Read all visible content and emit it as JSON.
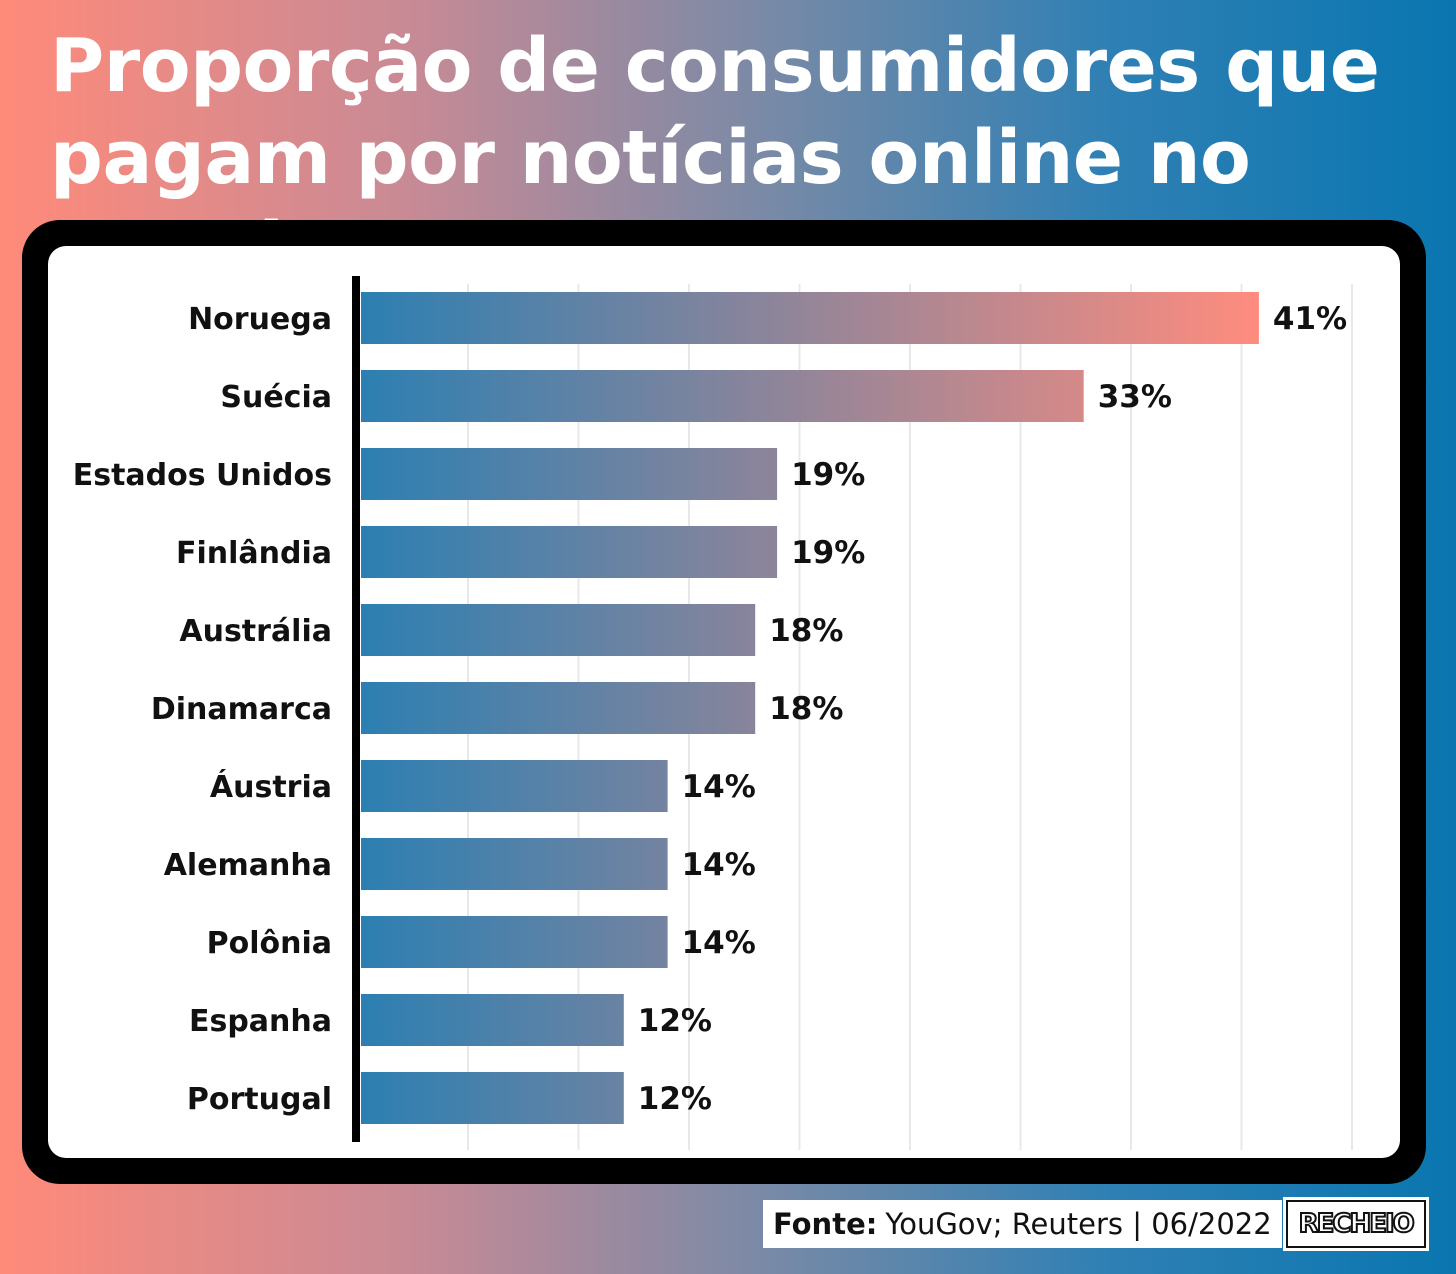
{
  "title": "Proporção de consumidores que pagam por notícias online no mundo",
  "footer": {
    "source_label": "Fonte:",
    "source_text": "YouGov; Reuters | 06/2022",
    "brand": "RECHEIO"
  },
  "colors": {
    "bar_start": "#2c7fb2",
    "bar_end": "#ff8c7e",
    "frame": "#000000",
    "grid": "#e8e8e8",
    "text": "#111111"
  },
  "chart_data": {
    "type": "bar",
    "orientation": "horizontal",
    "categories": [
      "Noruega",
      "Suécia",
      "Estados Unidos",
      "Finlândia",
      "Austrália",
      "Dinamarca",
      "Áustria",
      "Alemanha",
      "Polônia",
      "Espanha",
      "Portugal"
    ],
    "values": [
      41,
      33,
      19,
      19,
      18,
      18,
      14,
      14,
      14,
      12,
      12
    ],
    "value_labels": [
      "41%",
      "33%",
      "19%",
      "19%",
      "18%",
      "18%",
      "14%",
      "14%",
      "14%",
      "12%",
      "12%"
    ],
    "xlim": [
      0,
      45
    ],
    "grid": true,
    "legend": false
  }
}
